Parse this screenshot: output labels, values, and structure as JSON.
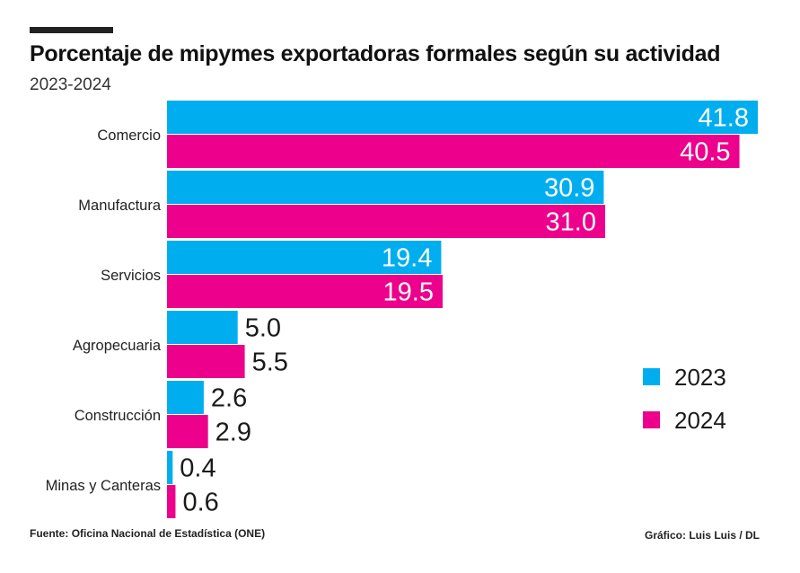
{
  "header": {
    "title": "Porcentaje de mipymes exportadoras formales según su actividad",
    "subtitle": "2023-2024"
  },
  "footer": {
    "source_label": "Fuente:",
    "source": "Oficina Nacional de Estadística (ONE)",
    "credit": "Gráfico: Luis Luis / DL"
  },
  "chart_data": {
    "type": "bar",
    "orientation": "horizontal",
    "title": "Porcentaje de mipymes exportadoras formales según su actividad",
    "subtitle": "2023-2024",
    "categories": [
      "Comercio",
      "Manufactura",
      "Servicios",
      "Agropecuaria",
      "Construcción",
      "Minas y Canteras"
    ],
    "series": [
      {
        "name": "2023",
        "color": "#00aeef",
        "values": [
          41.8,
          30.9,
          19.4,
          5.0,
          2.6,
          0.4
        ]
      },
      {
        "name": "2024",
        "color": "#ec008c",
        "values": [
          40.5,
          31.0,
          19.5,
          5.5,
          2.9,
          0.6
        ]
      }
    ],
    "value_labels": [
      [
        "41.8",
        "30.9",
        "19.4",
        "5.0",
        "2.6",
        "0.4"
      ],
      [
        "40.5",
        "31.0",
        "19.5",
        "5.5",
        "2.9",
        "0.6"
      ]
    ],
    "xlim": [
      0,
      41.8
    ],
    "xlabel": "",
    "ylabel": "",
    "grid": false,
    "legend": "right"
  }
}
